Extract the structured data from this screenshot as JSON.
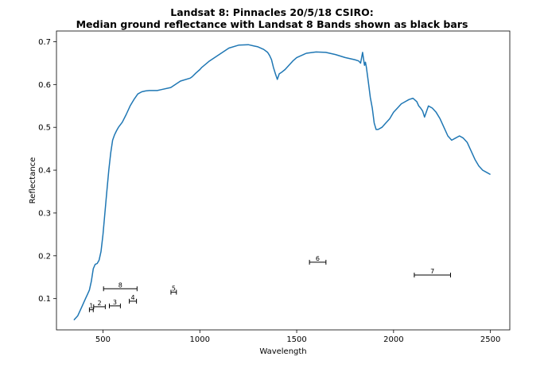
{
  "chart_data": {
    "type": "line",
    "title": "Landsat 8: Pinnacles 20/5/18 CSIRO:",
    "subtitle": "Median ground reflectance with Landsat 8 Bands shown as black bars",
    "xlabel": "Wavelength",
    "ylabel": "Reflectance",
    "xlim": [
      260,
      2600
    ],
    "ylim": [
      0.027,
      0.725
    ],
    "xticks": [
      500,
      1000,
      1500,
      2000,
      2500
    ],
    "yticks": [
      0.1,
      0.2,
      0.3,
      0.4,
      0.5,
      0.6,
      0.7
    ],
    "xtick_labels": [
      "500",
      "1000",
      "1500",
      "2000",
      "2500"
    ],
    "ytick_labels": [
      "0.1",
      "0.2",
      "0.3",
      "0.4",
      "0.5",
      "0.6",
      "0.7"
    ],
    "grid": false,
    "series": [
      {
        "color": "#1f77b4",
        "x": [
          350,
          370,
          390,
          410,
          420,
          430,
          440,
          450,
          460,
          470,
          480,
          490,
          500,
          510,
          520,
          530,
          540,
          550,
          560,
          570,
          580,
          600,
          620,
          640,
          660,
          680,
          700,
          720,
          740,
          760,
          780,
          800,
          850,
          900,
          950,
          960,
          980,
          1000,
          1010,
          1050,
          1100,
          1150,
          1200,
          1250,
          1280,
          1300,
          1330,
          1350,
          1360,
          1370,
          1380,
          1390,
          1400,
          1410,
          1420,
          1440,
          1460,
          1480,
          1500,
          1550,
          1600,
          1650,
          1700,
          1750,
          1800,
          1820,
          1830,
          1840,
          1845,
          1850,
          1855,
          1860,
          1870,
          1880,
          1890,
          1900,
          1910,
          1920,
          1940,
          1960,
          1980,
          2000,
          2020,
          2040,
          2060,
          2080,
          2100,
          2120,
          2130,
          2140,
          2150,
          2160,
          2180,
          2200,
          2220,
          2240,
          2260,
          2280,
          2300,
          2320,
          2340,
          2360,
          2380,
          2400,
          2420,
          2440,
          2460,
          2480,
          2500
        ],
        "y": [
          0.05,
          0.06,
          0.08,
          0.1,
          0.11,
          0.12,
          0.14,
          0.17,
          0.18,
          0.182,
          0.19,
          0.21,
          0.25,
          0.3,
          0.35,
          0.4,
          0.44,
          0.47,
          0.483,
          0.492,
          0.5,
          0.512,
          0.53,
          0.55,
          0.565,
          0.578,
          0.583,
          0.585,
          0.586,
          0.586,
          0.586,
          0.588,
          0.593,
          0.608,
          0.615,
          0.618,
          0.627,
          0.635,
          0.64,
          0.655,
          0.67,
          0.685,
          0.692,
          0.693,
          0.69,
          0.688,
          0.682,
          0.675,
          0.668,
          0.658,
          0.64,
          0.625,
          0.612,
          0.625,
          0.628,
          0.635,
          0.645,
          0.655,
          0.663,
          0.673,
          0.676,
          0.675,
          0.67,
          0.663,
          0.658,
          0.655,
          0.65,
          0.675,
          0.66,
          0.645,
          0.652,
          0.64,
          0.605,
          0.57,
          0.545,
          0.51,
          0.495,
          0.495,
          0.5,
          0.51,
          0.52,
          0.535,
          0.545,
          0.555,
          0.56,
          0.565,
          0.568,
          0.56,
          0.55,
          0.545,
          0.538,
          0.524,
          0.55,
          0.545,
          0.535,
          0.52,
          0.5,
          0.48,
          0.47,
          0.475,
          0.48,
          0.475,
          0.465,
          0.445,
          0.425,
          0.41,
          0.4,
          0.395,
          0.39
        ]
      }
    ],
    "bands": [
      {
        "label": "1",
        "start": 430,
        "end": 450,
        "y": 0.074
      },
      {
        "label": "2",
        "start": 452,
        "end": 512,
        "y": 0.081
      },
      {
        "label": "3",
        "start": 533,
        "end": 590,
        "y": 0.083
      },
      {
        "label": "4",
        "start": 636,
        "end": 673,
        "y": 0.094
      },
      {
        "label": "5",
        "start": 851,
        "end": 879,
        "y": 0.115
      },
      {
        "label": "6",
        "start": 1566,
        "end": 1651,
        "y": 0.185
      },
      {
        "label": "7",
        "start": 2107,
        "end": 2294,
        "y": 0.155
      },
      {
        "label": "8",
        "start": 503,
        "end": 676,
        "y": 0.123
      }
    ],
    "band_color": "#000000"
  }
}
